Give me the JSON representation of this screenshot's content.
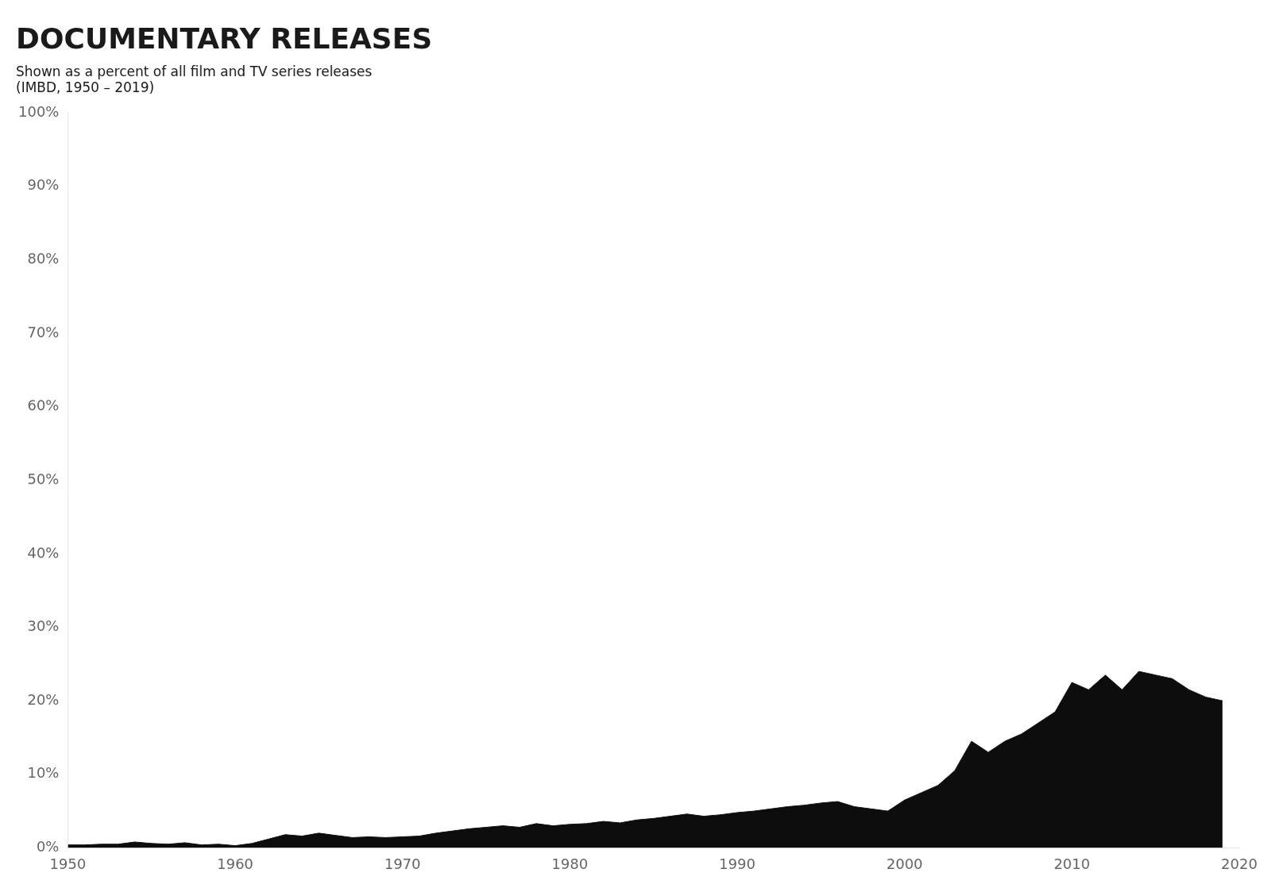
{
  "chart_data": {
    "type": "area",
    "title": "DOCUMENTARY RELEASES",
    "subtitle": [
      "Shown as a percent of all film and TV series releases",
      "(IMBD, 1950 – 2019)"
    ],
    "x": [
      1950,
      1951,
      1952,
      1953,
      1954,
      1955,
      1956,
      1957,
      1958,
      1959,
      1960,
      1961,
      1962,
      1963,
      1964,
      1965,
      1966,
      1967,
      1968,
      1969,
      1970,
      1971,
      1972,
      1973,
      1974,
      1975,
      1976,
      1977,
      1978,
      1979,
      1980,
      1981,
      1982,
      1983,
      1984,
      1985,
      1986,
      1987,
      1988,
      1989,
      1990,
      1991,
      1992,
      1993,
      1994,
      1995,
      1996,
      1997,
      1998,
      1999,
      2000,
      2001,
      2002,
      2003,
      2004,
      2005,
      2006,
      2007,
      2008,
      2009,
      2010,
      2011,
      2012,
      2013,
      2014,
      2015,
      2016,
      2017,
      2018,
      2019
    ],
    "values": [
      0.4,
      0.4,
      0.5,
      0.5,
      0.8,
      0.6,
      0.5,
      0.7,
      0.4,
      0.5,
      0.3,
      0.6,
      1.2,
      1.8,
      1.6,
      2.0,
      1.7,
      1.4,
      1.5,
      1.4,
      1.5,
      1.6,
      2.0,
      2.3,
      2.6,
      2.8,
      3.0,
      2.8,
      3.3,
      3.0,
      3.2,
      3.3,
      3.6,
      3.4,
      3.8,
      4.0,
      4.3,
      4.6,
      4.3,
      4.5,
      4.8,
      5.0,
      5.3,
      5.6,
      5.8,
      6.1,
      6.3,
      5.6,
      5.3,
      5.0,
      6.5,
      7.5,
      8.5,
      10.5,
      14.5,
      13.0,
      14.5,
      15.5,
      17.0,
      18.5,
      22.5,
      21.5,
      23.5,
      21.5,
      24.0,
      23.5,
      23.0,
      21.5,
      20.5,
      20.0
    ],
    "color": "#0d0d0d",
    "xlim": [
      1950,
      2020
    ],
    "xticks": [
      1950,
      1960,
      1970,
      1980,
      1990,
      2000,
      2010,
      2020
    ],
    "ylim": [
      0,
      100
    ],
    "yticks": [
      {
        "value": 0,
        "label": "0%"
      },
      {
        "value": 10,
        "label": "10%"
      },
      {
        "value": 20,
        "label": "20%"
      },
      {
        "value": 30,
        "label": "30%"
      },
      {
        "value": 40,
        "label": "40%"
      },
      {
        "value": 50,
        "label": "50%"
      },
      {
        "value": 60,
        "label": "60%"
      },
      {
        "value": 70,
        "label": "70%"
      },
      {
        "value": 80,
        "label": "80%"
      },
      {
        "value": 90,
        "label": "90%"
      },
      {
        "value": 100,
        "label": "100%"
      }
    ],
    "grid": false
  }
}
